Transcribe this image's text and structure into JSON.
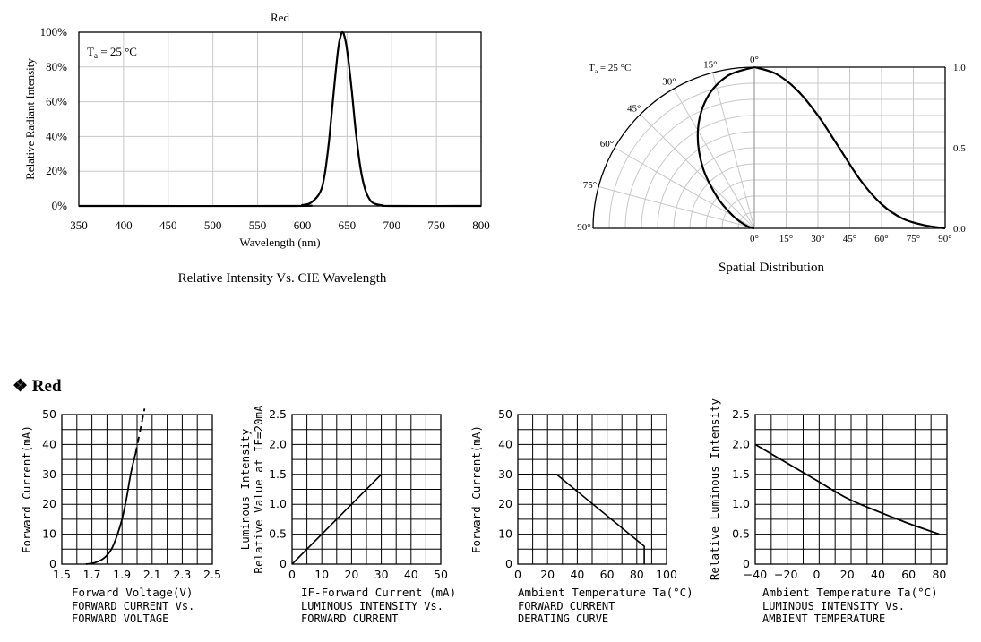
{
  "section": {
    "marker": "❖",
    "title": "Red"
  },
  "chart_data": [
    {
      "id": "spectrum",
      "type": "line",
      "title": "Red",
      "subtitle": "Relative Intensity Vs. CIE Wavelength",
      "xlabel": "Wavelength (nm)",
      "ylabel": "Relative  Radiant Intensity",
      "annotation": {
        "symbol": "T",
        "sub": "a",
        "rest": " = 25 °C"
      },
      "xlim": [
        350,
        800
      ],
      "ylim": [
        0,
        100
      ],
      "x_ticks": [
        "350",
        "400",
        "450",
        "500",
        "550",
        "600",
        "650",
        "700",
        "750",
        "800"
      ],
      "y_ticks": [
        "0%",
        "20%",
        "40%",
        "60%",
        "80%",
        "100%"
      ],
      "grid": true,
      "series": [
        {
          "x": [
            350,
            590,
            600,
            610,
            620,
            625,
            630,
            635,
            640,
            643,
            645,
            647,
            650,
            655,
            660,
            665,
            670,
            675,
            680,
            690,
            700,
            800
          ],
          "y": [
            0,
            0,
            0.5,
            2,
            8,
            18,
            38,
            65,
            90,
            98,
            100,
            98,
            90,
            68,
            42,
            22,
            10,
            4,
            1.5,
            0.3,
            0,
            0
          ]
        }
      ]
    },
    {
      "id": "spatial",
      "type": "line",
      "title": "Spatial Distribution",
      "annotation": {
        "symbol": "T",
        "sub": "a",
        "rest": " = 25 °C"
      },
      "angle_labels": [
        "0°",
        "15°",
        "30°",
        "45°",
        "60°",
        "75°",
        "90°"
      ],
      "x_ticks": [
        "0°",
        "15°",
        "30°",
        "45°",
        "60°",
        "75°",
        "90°"
      ],
      "y_ticks_right": [
        "0.0",
        "0.5",
        "1.0"
      ],
      "ylim": [
        0,
        1
      ],
      "grid": true,
      "series": [
        {
          "angle": [
            0,
            10,
            20,
            30,
            40,
            50,
            60,
            70,
            80,
            90
          ],
          "value": [
            1.0,
            0.96,
            0.86,
            0.7,
            0.5,
            0.3,
            0.15,
            0.06,
            0.02,
            0
          ]
        }
      ]
    },
    {
      "id": "iv",
      "type": "line",
      "xlabel": "Forward  Voltage(V)",
      "caption": [
        "FORWARD  CURRENT  Vs.",
        "FORWARD  VOLTAGE"
      ],
      "ylabel": "Forward  Current(mA)",
      "xlim": [
        1.5,
        2.5
      ],
      "ylim": [
        0,
        50
      ],
      "x_ticks": [
        "1.5",
        "1.7",
        "1.9",
        "2.1",
        "2.3",
        "2.5"
      ],
      "y_ticks": [
        "0",
        "10",
        "20",
        "30",
        "40",
        "50"
      ],
      "grid": true,
      "series": [
        {
          "style": "solid",
          "x": [
            1.66,
            1.72,
            1.78,
            1.83,
            1.87,
            1.9,
            1.93,
            1.95,
            1.97,
            1.99
          ],
          "y": [
            0,
            0.5,
            2,
            5,
            10,
            15,
            22,
            28,
            33,
            37
          ]
        },
        {
          "style": "dashed",
          "x": [
            1.99,
            2.01,
            2.03,
            2.05
          ],
          "y": [
            37,
            42,
            47,
            52
          ]
        }
      ]
    },
    {
      "id": "li",
      "type": "line",
      "xlabel": "IF-Forward  Current  (mA)",
      "caption": [
        "LUMINOUS  INTENSITY  Vs.",
        "FORWARD  CURRENT"
      ],
      "ylabel": [
        "Luminous  Intensity",
        "Relative  Value  at  IF=20mA"
      ],
      "xlim": [
        0,
        50
      ],
      "ylim": [
        0,
        2.5
      ],
      "x_ticks": [
        "0",
        "10",
        "20",
        "30",
        "40",
        "50"
      ],
      "y_ticks": [
        "0",
        "0.5",
        "1.0",
        "1.5",
        "2.0",
        "2.5"
      ],
      "grid": true,
      "series": [
        {
          "x": [
            0,
            30
          ],
          "y": [
            0,
            1.5
          ]
        }
      ]
    },
    {
      "id": "derating",
      "type": "line",
      "xlabel": "Ambient  Temperature  Ta(°C)",
      "caption": [
        "FORWARD  CURRENT",
        "DERATING  CURVE"
      ],
      "ylabel": "Forward  Current(mA)",
      "xlim": [
        0,
        100
      ],
      "ylim": [
        0,
        50
      ],
      "x_ticks": [
        "0",
        "20",
        "40",
        "60",
        "80",
        "100"
      ],
      "y_ticks": [
        "0",
        "10",
        "20",
        "30",
        "40",
        "50"
      ],
      "grid": true,
      "series": [
        {
          "x": [
            0,
            26,
            85,
            85
          ],
          "y": [
            30,
            30,
            6,
            0
          ]
        }
      ]
    },
    {
      "id": "temp",
      "type": "line",
      "xlabel": "Ambient  Temperature  Ta(°C)",
      "caption": [
        "LUMINOUS  INTENSITY  Vs.",
        "AMBIENT  TEMPERATURE"
      ],
      "ylabel": "Relative  Luminous  Intensity",
      "xlim": [
        -40,
        85
      ],
      "ylim": [
        0,
        2.5
      ],
      "x_ticks": [
        "−40",
        "−20",
        "0",
        "20",
        "40",
        "60",
        "80"
      ],
      "y_ticks": [
        "0",
        "0.5",
        "1.0",
        "1.5",
        "2.0",
        "2.5"
      ],
      "grid": true,
      "series": [
        {
          "x": [
            -40,
            -20,
            0,
            20,
            40,
            60,
            80
          ],
          "y": [
            2.0,
            1.7,
            1.4,
            1.1,
            0.88,
            0.68,
            0.5
          ]
        }
      ]
    }
  ]
}
